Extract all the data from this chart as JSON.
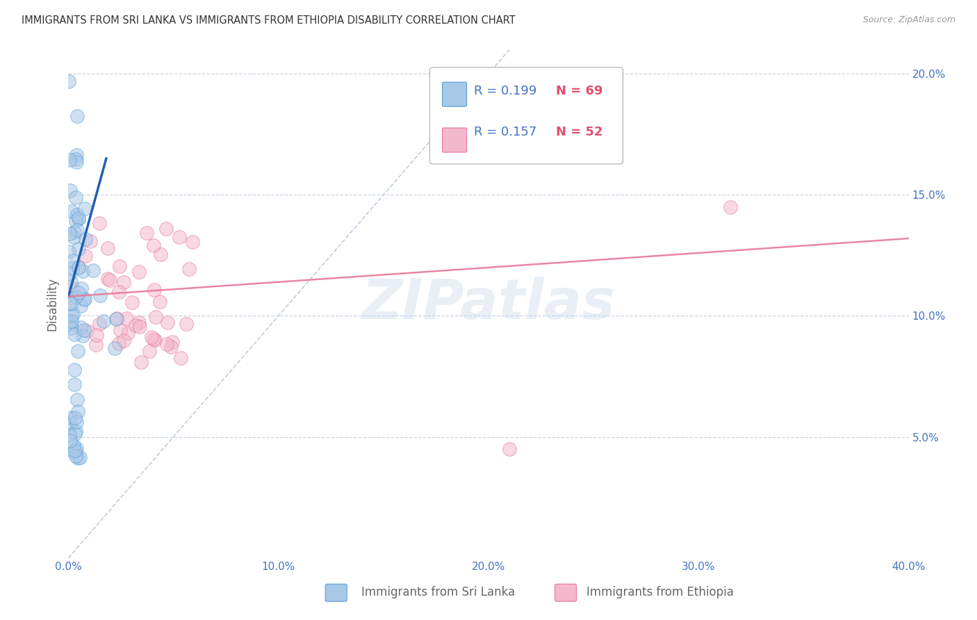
{
  "title": "IMMIGRANTS FROM SRI LANKA VS IMMIGRANTS FROM ETHIOPIA DISABILITY CORRELATION CHART",
  "source": "Source: ZipAtlas.com",
  "ylabel_label": "Disability",
  "x_min": 0.0,
  "x_max": 0.4,
  "y_min": 0.0,
  "y_max": 0.21,
  "x_ticks": [
    0.0,
    0.1,
    0.2,
    0.3,
    0.4
  ],
  "x_tick_labels": [
    "0.0%",
    "10.0%",
    "20.0%",
    "30.0%",
    "40.0%"
  ],
  "y_ticks": [
    0.0,
    0.05,
    0.1,
    0.15,
    0.2
  ],
  "y_tick_labels": [
    "",
    "5.0%",
    "10.0%",
    "15.0%",
    "20.0%"
  ],
  "sri_lanka_color": "#a8c8e8",
  "sri_lanka_edge": "#5a9fd4",
  "ethiopia_color": "#f4b8cc",
  "ethiopia_edge": "#e8789a",
  "trend_sri_lanka_color": "#2060b0",
  "trend_ethiopia_color": "#e8789a",
  "diagonal_color": "#b8c8d8",
  "legend_r_sri": "R = 0.199",
  "legend_n_sri": "N = 69",
  "legend_r_eth": "R = 0.157",
  "legend_n_eth": "N = 52",
  "watermark": "ZIPatlas",
  "background_color": "#ffffff",
  "grid_color": "#c8d4e0",
  "tick_color": "#4472c4",
  "label_color": "#666666"
}
